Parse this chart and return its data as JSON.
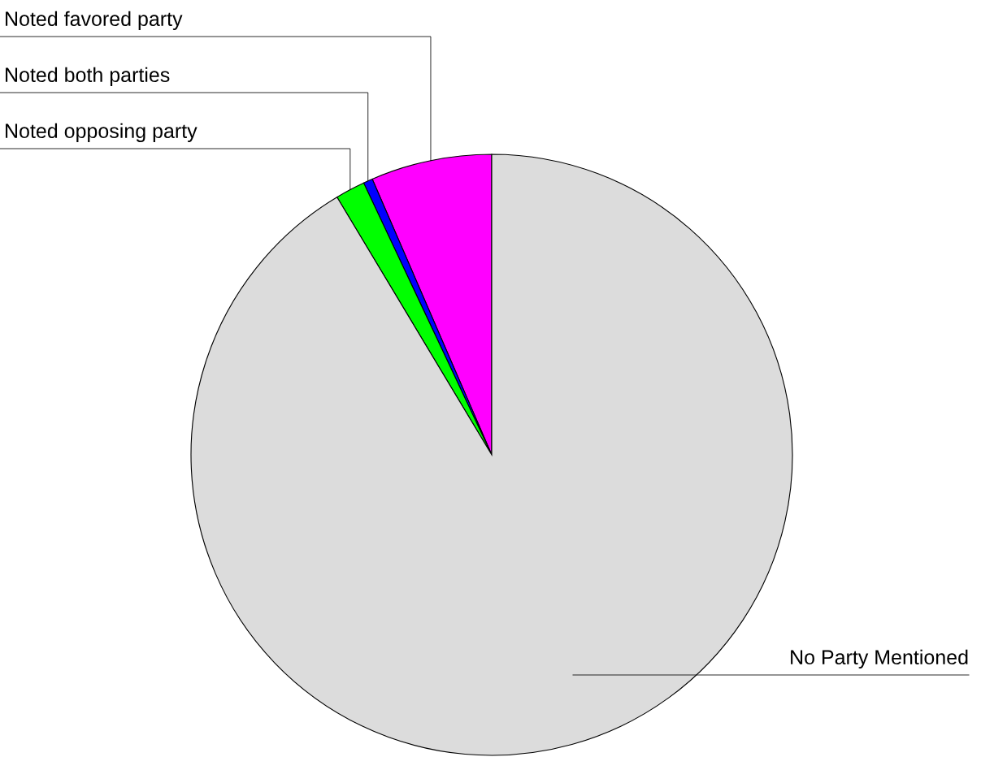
{
  "chart_data": {
    "type": "pie",
    "categories": [
      "Noted favored party",
      "Noted both parties",
      "Noted opposing party",
      "No Party Mentioned"
    ],
    "values": [
      6.5,
      0.5,
      1.6,
      91.4
    ],
    "colors": [
      "#ff00ff",
      "#0000ff",
      "#00ff00",
      "#dcdcdc"
    ],
    "legend": false
  }
}
